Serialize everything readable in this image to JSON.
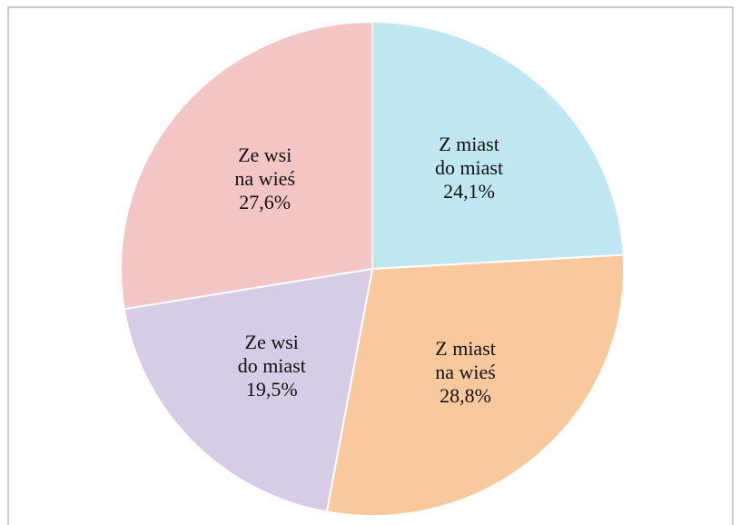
{
  "chart_data": {
    "type": "pie",
    "categories": [
      "Z miast\ndo miast",
      "Z miast\nna wieś",
      "Ze wsi\ndo miast",
      "Ze wsi\nna wieś"
    ],
    "values": [
      24.1,
      28.8,
      19.5,
      27.6
    ],
    "value_labels": [
      "24,1%",
      "28,8%",
      "19,5%",
      "27,6%"
    ],
    "colors": [
      "#bfe7f2",
      "#f9c99d",
      "#d6cce5",
      "#f3c5c5"
    ]
  }
}
